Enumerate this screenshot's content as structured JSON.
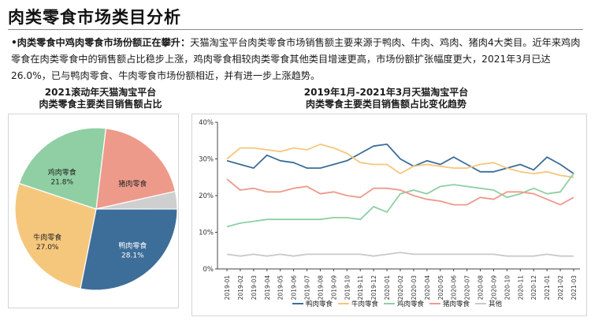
{
  "page": {
    "title": "肉类零食市场类目分析",
    "summary_lead": "•肉类零食中鸡肉零食市场份额正在攀升：",
    "summary_body": "天猫淘宝平台肉类零食市场销售额主要来源于鸭肉、牛肉、鸡肉、猪肉4大类目。近年来鸡肉零食在肉类零食中的销售额占比稳步上涨，鸡肉零食相较肉类零食其他类目增速更高，市场份额扩张幅度更大，2021年3月已达26.0%，已与鸭肉零食、牛肉零食市场份额相近，并有进一步上涨趋势。"
  },
  "chart_data": [
    {
      "type": "pie",
      "title": "2021滚动年天猫淘宝平台\n肉类零食主要类目销售额占比",
      "slices": [
        {
          "label": "鸭肉零食",
          "value": 28.1,
          "value_label": "28.1%",
          "color": "#3d6e99"
        },
        {
          "label": "牛肉零食",
          "value": 27.0,
          "value_label": "27.0%",
          "color": "#f5c77d"
        },
        {
          "label": "鸡肉零食",
          "value": 21.8,
          "value_label": "21.8%",
          "color": "#8fcfa3"
        },
        {
          "label": "猪肉零食",
          "value": 19.6,
          "value_label": "",
          "color": "#ee9a8b"
        },
        {
          "label": "其他",
          "value": 3.5,
          "value_label": "",
          "color": "#cfcfcf"
        }
      ]
    },
    {
      "type": "line",
      "title": "2019年1月-2021年3月天猫淘宝平台\n肉类零食主要类目销售额占比变化趋势",
      "x": [
        "2019-01",
        "2019-02",
        "2019-03",
        "2019-04",
        "2019-05",
        "2019-06",
        "2019-07",
        "2019-08",
        "2019-09",
        "2019-10",
        "2019-11",
        "2019-12",
        "2020-01",
        "2020-02",
        "2020-03",
        "2020-04",
        "2020-05",
        "2020-06",
        "2020-07",
        "2020-08",
        "2020-09",
        "2020-10",
        "2020-11",
        "2020-12",
        "2021-01",
        "2021-02",
        "2021-03"
      ],
      "ylim": [
        0,
        40
      ],
      "yticks": [
        0,
        10,
        20,
        30,
        40
      ],
      "ytick_labels": [
        "0%",
        "10%",
        "20%",
        "30%",
        "40%"
      ],
      "grid": false,
      "legend_position": "bottom",
      "series": [
        {
          "name": "鸭肉零食",
          "color": "#3d6e99",
          "values": [
            29.5,
            28.5,
            27.5,
            31.0,
            29.5,
            29.0,
            27.5,
            27.5,
            28.5,
            29.5,
            31.5,
            33.5,
            34.0,
            30.0,
            28.0,
            29.5,
            28.5,
            30.5,
            28.5,
            26.5,
            26.5,
            27.5,
            28.5,
            27.0,
            30.5,
            28.5,
            26.0
          ]
        },
        {
          "name": "牛肉零食",
          "color": "#f5c77d",
          "values": [
            30.0,
            33.0,
            33.0,
            32.5,
            32.0,
            33.0,
            32.5,
            34.0,
            33.0,
            31.5,
            29.0,
            28.5,
            28.5,
            26.0,
            28.0,
            28.5,
            28.0,
            27.5,
            27.5,
            28.5,
            29.0,
            27.5,
            26.5,
            26.0,
            26.5,
            25.5,
            25.0
          ]
        },
        {
          "name": "鸡肉零食",
          "color": "#8fcfa3",
          "values": [
            11.5,
            12.5,
            13.0,
            13.5,
            13.5,
            13.5,
            13.5,
            13.5,
            14.0,
            14.0,
            13.5,
            17.0,
            15.5,
            20.5,
            21.5,
            20.5,
            22.5,
            23.0,
            22.5,
            22.0,
            21.5,
            19.5,
            20.5,
            22.0,
            20.5,
            21.0,
            26.0
          ]
        },
        {
          "name": "猪肉零食",
          "color": "#ee9a8b",
          "values": [
            24.5,
            21.5,
            22.0,
            21.0,
            21.0,
            22.0,
            22.5,
            20.5,
            21.0,
            20.0,
            19.5,
            22.0,
            22.0,
            21.5,
            20.0,
            19.0,
            18.5,
            17.5,
            17.5,
            19.5,
            19.0,
            21.0,
            21.0,
            20.5,
            19.0,
            17.5,
            19.5
          ]
        },
        {
          "name": "其他",
          "color": "#c9c9c9",
          "values": [
            4.0,
            3.5,
            4.0,
            3.5,
            4.0,
            3.5,
            4.0,
            4.0,
            4.0,
            4.0,
            4.0,
            3.5,
            4.0,
            4.5,
            4.0,
            4.0,
            4.0,
            4.0,
            4.0,
            4.0,
            4.0,
            3.5,
            3.5,
            3.5,
            4.0,
            3.5,
            3.5
          ]
        }
      ]
    }
  ]
}
